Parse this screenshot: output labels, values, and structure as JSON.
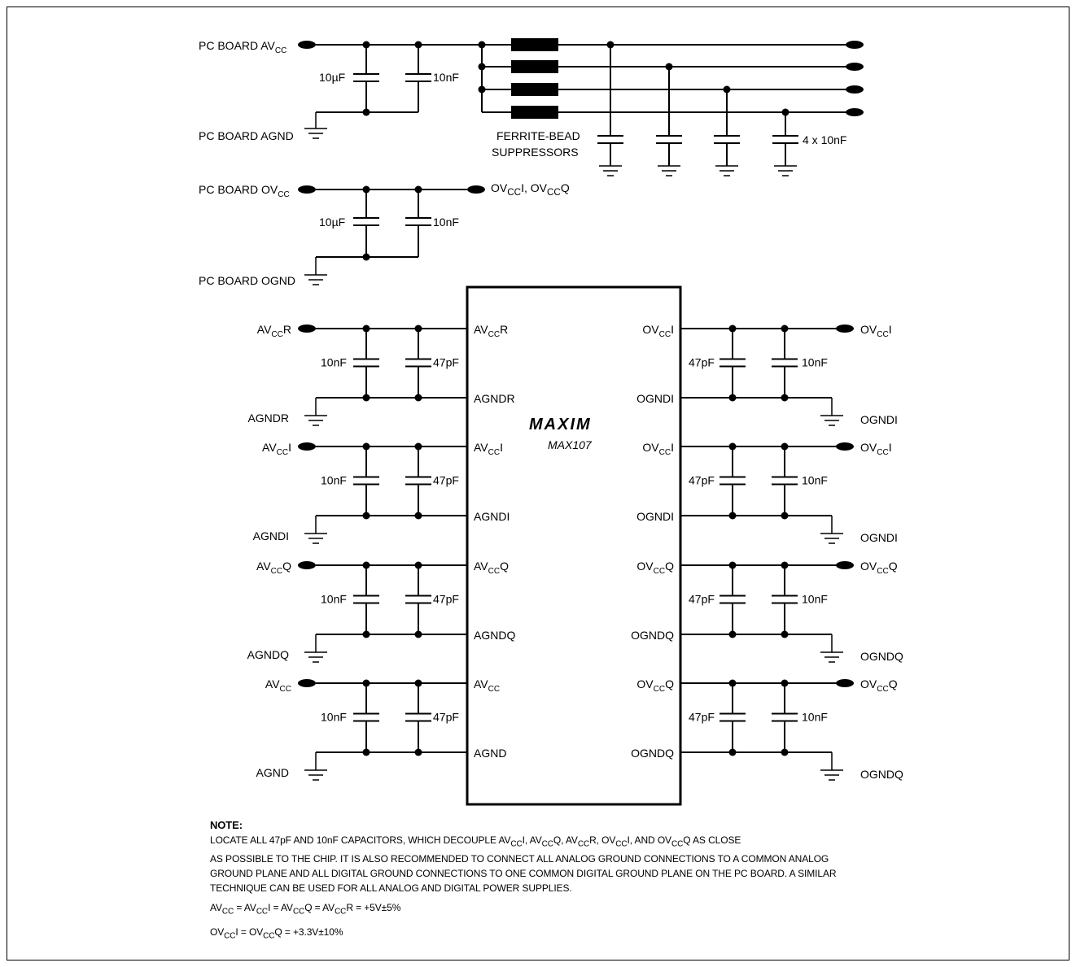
{
  "top_section": {
    "avcc_label": "PC BOARD AV",
    "avcc_sub": "CC",
    "agnd_label": "PC BOARD AGND",
    "ovcc_label": "PC BOARD OV",
    "ovcc_sub": "CC",
    "ognd_label": "PC BOARD OGND",
    "cap_10uF": "10µF",
    "cap_10nF": "10nF",
    "ferrite_line1": "FERRITE-BEAD",
    "ferrite_line2": "SUPPRESSORS",
    "cap_4x10nF": "4 x 10nF",
    "ovcc_out_label": "OV<sub>CC</sub>I, OV<sub>CC</sub>Q"
  },
  "chip": {
    "logo": "MAXIM",
    "part": "MAX107",
    "left_pins": [
      {
        "name": "AV",
        "sub": "CC",
        "suffix": "R"
      },
      {
        "name": "AGNDR",
        "sub": "",
        "suffix": ""
      },
      {
        "name": "AV",
        "sub": "CC",
        "suffix": "I"
      },
      {
        "name": "AGNDI",
        "sub": "",
        "suffix": ""
      },
      {
        "name": "AV",
        "sub": "CC",
        "suffix": "Q"
      },
      {
        "name": "AGNDQ",
        "sub": "",
        "suffix": ""
      },
      {
        "name": "AV",
        "sub": "CC",
        "suffix": ""
      },
      {
        "name": "AGND",
        "sub": "",
        "suffix": ""
      }
    ],
    "right_pins": [
      {
        "name": "OV",
        "sub": "CC",
        "suffix": "I"
      },
      {
        "name": "OGNDI",
        "sub": "",
        "suffix": ""
      },
      {
        "name": "OV",
        "sub": "CC",
        "suffix": "I"
      },
      {
        "name": "OGNDI",
        "sub": "",
        "suffix": ""
      },
      {
        "name": "OV",
        "sub": "CC",
        "suffix": "Q"
      },
      {
        "name": "OGNDQ",
        "sub": "",
        "suffix": ""
      },
      {
        "name": "OV",
        "sub": "CC",
        "suffix": "Q"
      },
      {
        "name": "OGNDQ",
        "sub": "",
        "suffix": ""
      }
    ]
  },
  "left_groups": [
    {
      "supply": "AV",
      "supply_sub": "CC",
      "supply_suffix": "R",
      "ground": "AGNDR",
      "cap_a": "10nF",
      "cap_b": "47pF"
    },
    {
      "supply": "AV",
      "supply_sub": "CC",
      "supply_suffix": "I",
      "ground": "AGNDI",
      "cap_a": "10nF",
      "cap_b": "47pF"
    },
    {
      "supply": "AV",
      "supply_sub": "CC",
      "supply_suffix": "Q",
      "ground": "AGNDQ",
      "cap_a": "10nF",
      "cap_b": "47pF"
    },
    {
      "supply": "AV",
      "supply_sub": "CC",
      "supply_suffix": "",
      "ground": "AGND",
      "cap_a": "10nF",
      "cap_b": "47pF"
    }
  ],
  "right_groups": [
    {
      "supply": "OV",
      "supply_sub": "CC",
      "supply_suffix": "I",
      "ground": "OGNDI",
      "cap_a": "47pF",
      "cap_b": "10nF"
    },
    {
      "supply": "OV",
      "supply_sub": "CC",
      "supply_suffix": "I",
      "ground": "OGNDI",
      "cap_a": "47pF",
      "cap_b": "10nF"
    },
    {
      "supply": "OV",
      "supply_sub": "CC",
      "supply_suffix": "Q",
      "ground": "OGNDQ",
      "cap_a": "47pF",
      "cap_b": "10nF"
    },
    {
      "supply": "OV",
      "supply_sub": "CC",
      "supply_suffix": "Q",
      "ground": "OGNDQ",
      "cap_a": "47pF",
      "cap_b": "10nF"
    }
  ],
  "note": {
    "title": "NOTE:",
    "line1": "LOCATE ALL 47pF AND 10nF CAPACITORS, WHICH DECOUPLE AV<sub>CC</sub>I, AV<sub>CC</sub>Q, AV<sub>CC</sub>R, OV<sub>CC</sub>I, AND OV<sub>CC</sub>Q AS CLOSE",
    "line2": "AS POSSIBLE TO THE CHIP. IT IS ALSO RECOMMENDED TO CONNECT ALL ANALOG GROUND CONNECTIONS TO A COMMON ANALOG",
    "line3": "GROUND PLANE AND ALL DIGITAL GROUND CONNECTIONS TO ONE COMMON DIGITAL GROUND PLANE ON THE PC BOARD. A SIMILAR",
    "line4": "TECHNIQUE CAN BE USED FOR ALL ANALOG AND DIGITAL POWER SUPPLIES.",
    "eq1": "AV<sub>CC</sub> = AV<sub>CC</sub>I = AV<sub>CC</sub>Q = AV<sub>CC</sub>R = +5V±5%",
    "eq2": "OV<sub>CC</sub>I = OV<sub>CC</sub>Q = +3.3V±10%"
  }
}
